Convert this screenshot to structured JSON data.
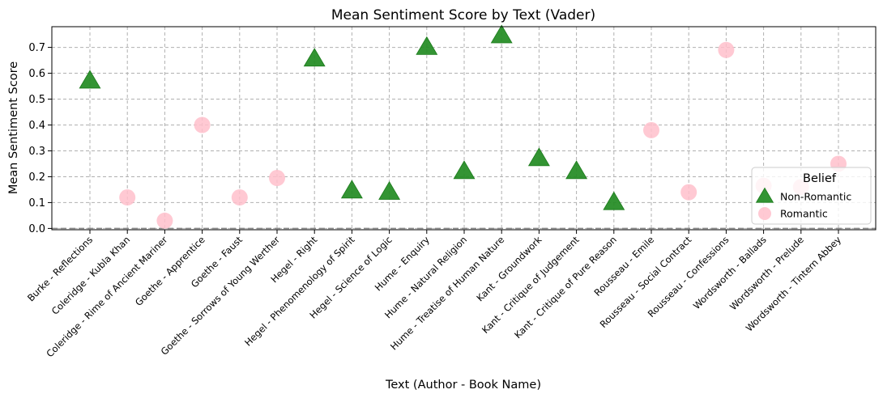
{
  "chart_data": {
    "type": "scatter",
    "title": "Mean Sentiment Score by Text (Vader)",
    "xlabel": "Text (Author - Book Name)",
    "ylabel": "Mean Sentiment Score",
    "ylim": [
      -0.005,
      0.78
    ],
    "yticks": [
      "0.0",
      "0.1",
      "0.2",
      "0.3",
      "0.4",
      "0.5",
      "0.6",
      "0.7"
    ],
    "grid": true,
    "reference_line_y": 0,
    "categories": [
      "Burke - Reflections",
      "Coleridge - Kubla Khan",
      "Coleridge - Rime of Ancient Mariner",
      "Goethe - Apprentice",
      "Goethe - Faust",
      "Goethe - Sorrows of Young Werther",
      "Hegel - Right",
      "Hegel - Phenomenology of Spirit",
      "Hegel - Science of Logic",
      "Hume - Enquiry",
      "Hume - Natural Religion",
      "Hume - Treatise of Human Nature",
      "Kant - Groundwork",
      "Kant - Critique of Judgement",
      "Kant - Critique of Pure Reason",
      "Rousseau - Emile",
      "Rousseau - Social Contract",
      "Rousseau - Confessions",
      "Wordsworth - Ballads",
      "Wordsworth - Prelude",
      "Wordsworth - Tintern Abbey"
    ],
    "series": [
      {
        "name": "Non-Romantic",
        "marker": "triangle",
        "color": "#228b22",
        "points": [
          {
            "x": "Burke - Reflections",
            "y": 0.57
          },
          {
            "x": "Hegel - Right",
            "y": 0.655
          },
          {
            "x": "Hegel - Phenomenology of Spirit",
            "y": 0.145
          },
          {
            "x": "Hegel - Science of Logic",
            "y": 0.14
          },
          {
            "x": "Hume - Enquiry",
            "y": 0.7
          },
          {
            "x": "Hume - Natural Religion",
            "y": 0.22
          },
          {
            "x": "Hume - Treatise of Human Nature",
            "y": 0.745
          },
          {
            "x": "Kant - Groundwork",
            "y": 0.27
          },
          {
            "x": "Kant - Critique of Judgement",
            "y": 0.22
          },
          {
            "x": "Kant - Critique of Pure Reason",
            "y": 0.1
          }
        ]
      },
      {
        "name": "Romantic",
        "marker": "circle",
        "color": "#ffc0cb",
        "points": [
          {
            "x": "Coleridge - Kubla Khan",
            "y": 0.12
          },
          {
            "x": "Coleridge - Rime of Ancient Mariner",
            "y": 0.03
          },
          {
            "x": "Goethe - Apprentice",
            "y": 0.4
          },
          {
            "x": "Goethe - Faust",
            "y": 0.12
          },
          {
            "x": "Goethe - Sorrows of Young Werther",
            "y": 0.195
          },
          {
            "x": "Rousseau - Emile",
            "y": 0.38
          },
          {
            "x": "Rousseau - Social Contract",
            "y": 0.14
          },
          {
            "x": "Rousseau - Confessions",
            "y": 0.69
          },
          {
            "x": "Wordsworth - Ballads",
            "y": 0.165
          },
          {
            "x": "Wordsworth - Prelude",
            "y": 0.16
          },
          {
            "x": "Wordsworth - Tintern Abbey",
            "y": 0.25
          }
        ]
      }
    ],
    "legend": {
      "title": "Belief",
      "placement": "lower-right"
    }
  }
}
